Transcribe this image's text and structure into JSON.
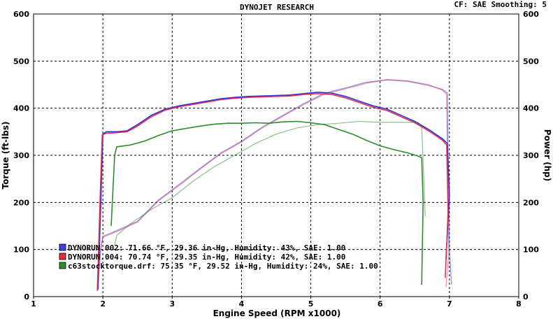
{
  "chart_data": {
    "type": "line",
    "title": "DYNOJET RESEARCH",
    "header_right": "CF: SAE  Smoothing: 5",
    "xlabel": "Engine Speed (RPM x1000)",
    "ylabel_left": "Torque (ft-lbs)",
    "ylabel_right": "Power (hp)",
    "xlim": [
      1,
      8
    ],
    "ylim": [
      0,
      600
    ],
    "xticks": [
      1,
      2,
      3,
      4,
      5,
      6,
      7,
      8
    ],
    "yticks": [
      0,
      100,
      200,
      300,
      400,
      500,
      600
    ],
    "grid": true,
    "legend_position": "bottom-left",
    "series": [
      {
        "name": "DYNORUN.002: 71.66 °F, 29.36 in-Hg, Humidity: 43%, SAE: 1.00",
        "color": "#2f2fd0",
        "legend_swatch": "#3f3fe8",
        "torque": [
          [
            1.93,
            15
          ],
          [
            1.97,
            200
          ],
          [
            2.0,
            345
          ],
          [
            2.05,
            350
          ],
          [
            2.2,
            350
          ],
          [
            2.35,
            352
          ],
          [
            2.5,
            365
          ],
          [
            2.7,
            385
          ],
          [
            2.9,
            398
          ],
          [
            3.1,
            405
          ],
          [
            3.3,
            410
          ],
          [
            3.5,
            415
          ],
          [
            3.7,
            420
          ],
          [
            3.9,
            423
          ],
          [
            4.1,
            425
          ],
          [
            4.3,
            426
          ],
          [
            4.5,
            427
          ],
          [
            4.7,
            428
          ],
          [
            4.9,
            431
          ],
          [
            5.1,
            434
          ],
          [
            5.3,
            432
          ],
          [
            5.5,
            425
          ],
          [
            5.7,
            415
          ],
          [
            5.9,
            405
          ],
          [
            6.1,
            398
          ],
          [
            6.3,
            385
          ],
          [
            6.5,
            372
          ],
          [
            6.7,
            355
          ],
          [
            6.9,
            335
          ],
          [
            6.97,
            325
          ],
          [
            7.0,
            215
          ],
          [
            6.95,
            80
          ]
        ],
        "power": [
          [
            1.93,
            30
          ],
          [
            1.97,
            100
          ],
          [
            2.0,
            128
          ],
          [
            2.2,
            140
          ],
          [
            2.5,
            160
          ],
          [
            2.8,
            205
          ],
          [
            3.1,
            238
          ],
          [
            3.4,
            272
          ],
          [
            3.7,
            305
          ],
          [
            4.0,
            330
          ],
          [
            4.3,
            360
          ],
          [
            4.6,
            385
          ],
          [
            4.9,
            410
          ],
          [
            5.2,
            432
          ],
          [
            5.5,
            443
          ],
          [
            5.8,
            455
          ],
          [
            6.1,
            460
          ],
          [
            6.4,
            457
          ],
          [
            6.7,
            448
          ],
          [
            6.9,
            440
          ],
          [
            6.97,
            432
          ],
          [
            6.98,
            300
          ],
          [
            7.0,
            100
          ],
          [
            7.03,
            25
          ]
        ]
      },
      {
        "name": "DYNORUN.004: 70.74 °F, 29.35 in-Hg, Humidity: 42%, SAE: 1.00",
        "color": "#e0305a",
        "legend_swatch": "#e03040",
        "torque": [
          [
            1.92,
            12
          ],
          [
            1.96,
            210
          ],
          [
            1.99,
            343
          ],
          [
            2.05,
            347
          ],
          [
            2.2,
            348
          ],
          [
            2.35,
            350
          ],
          [
            2.5,
            362
          ],
          [
            2.7,
            382
          ],
          [
            2.9,
            396
          ],
          [
            3.1,
            403
          ],
          [
            3.3,
            408
          ],
          [
            3.5,
            413
          ],
          [
            3.7,
            418
          ],
          [
            3.9,
            421
          ],
          [
            4.1,
            423
          ],
          [
            4.3,
            424
          ],
          [
            4.5,
            425
          ],
          [
            4.7,
            426
          ],
          [
            4.9,
            429
          ],
          [
            5.1,
            431
          ],
          [
            5.3,
            429
          ],
          [
            5.5,
            422
          ],
          [
            5.7,
            412
          ],
          [
            5.9,
            402
          ],
          [
            6.1,
            395
          ],
          [
            6.3,
            382
          ],
          [
            6.5,
            369
          ],
          [
            6.7,
            352
          ],
          [
            6.9,
            332
          ],
          [
            6.96,
            322
          ],
          [
            6.98,
            180
          ],
          [
            6.94,
            40
          ]
        ],
        "power": [
          [
            1.92,
            25
          ],
          [
            1.96,
            95
          ],
          [
            2.0,
            126
          ],
          [
            2.2,
            138
          ],
          [
            2.5,
            158
          ],
          [
            2.8,
            203
          ],
          [
            3.1,
            236
          ],
          [
            3.4,
            270
          ],
          [
            3.7,
            303
          ],
          [
            4.0,
            328
          ],
          [
            4.3,
            358
          ],
          [
            4.6,
            383
          ],
          [
            4.9,
            408
          ],
          [
            5.2,
            430
          ],
          [
            5.5,
            441
          ],
          [
            5.8,
            453
          ],
          [
            6.1,
            461
          ],
          [
            6.4,
            458
          ],
          [
            6.7,
            450
          ],
          [
            6.9,
            438
          ],
          [
            6.96,
            430
          ],
          [
            6.97,
            280
          ],
          [
            6.99,
            90
          ],
          [
            6.95,
            20
          ]
        ]
      },
      {
        "name": "c63stocktorque.drf: 75.35 °F, 29.52 in-Hg, Humidity: 24%, SAE: 1.00",
        "color": "#2e8b2e",
        "legend_swatch": "#2e8b2e",
        "torque": [
          [
            2.12,
            150
          ],
          [
            2.17,
            300
          ],
          [
            2.2,
            318
          ],
          [
            2.4,
            322
          ],
          [
            2.6,
            330
          ],
          [
            2.8,
            342
          ],
          [
            3.0,
            352
          ],
          [
            3.2,
            357
          ],
          [
            3.4,
            362
          ],
          [
            3.6,
            366
          ],
          [
            3.8,
            368
          ],
          [
            4.0,
            368
          ],
          [
            4.2,
            369
          ],
          [
            4.4,
            368
          ],
          [
            4.6,
            371
          ],
          [
            4.8,
            372
          ],
          [
            5.0,
            369
          ],
          [
            5.2,
            365
          ],
          [
            5.4,
            355
          ],
          [
            5.6,
            345
          ],
          [
            5.8,
            332
          ],
          [
            6.0,
            320
          ],
          [
            6.2,
            312
          ],
          [
            6.4,
            305
          ],
          [
            6.55,
            298
          ],
          [
            6.6,
            295
          ],
          [
            6.62,
            200
          ],
          [
            6.6,
            25
          ]
        ],
        "power": [
          [
            2.17,
            110
          ],
          [
            2.2,
            130
          ],
          [
            2.4,
            155
          ],
          [
            2.7,
            185
          ],
          [
            3.0,
            210
          ],
          [
            3.3,
            245
          ],
          [
            3.6,
            275
          ],
          [
            3.9,
            300
          ],
          [
            4.2,
            325
          ],
          [
            4.5,
            345
          ],
          [
            4.8,
            358
          ],
          [
            5.1,
            365
          ],
          [
            5.4,
            368
          ],
          [
            5.7,
            372
          ],
          [
            6.0,
            370
          ],
          [
            6.3,
            370
          ],
          [
            6.55,
            370
          ],
          [
            6.6,
            360
          ],
          [
            6.63,
            250
          ],
          [
            6.65,
            170
          ]
        ]
      }
    ]
  }
}
